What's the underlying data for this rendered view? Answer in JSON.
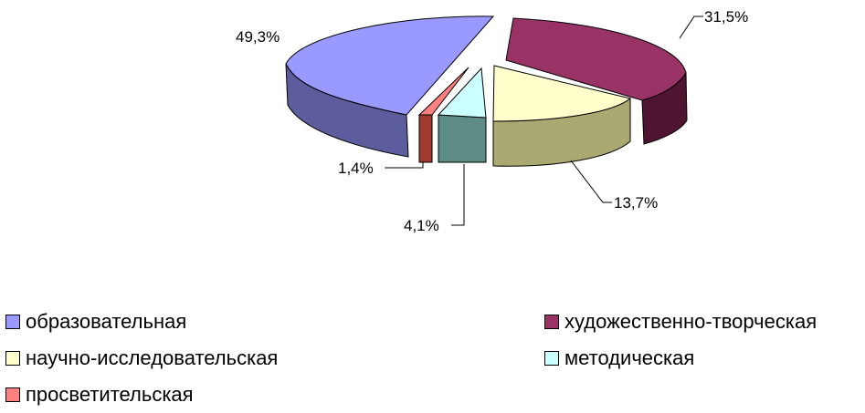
{
  "chart_data": {
    "type": "pie",
    "style": "3d-exploded",
    "categories": [
      "образовательная",
      "художественно-творческая",
      "научно-исследовательская",
      "методическая",
      "просветительская"
    ],
    "values": [
      49.3,
      31.5,
      13.7,
      4.1,
      1.4
    ],
    "data_labels": [
      "49,3%",
      "31,5%",
      "13,7%",
      "4,1%",
      "1,4%"
    ],
    "legend_placement": "bottom",
    "colors": {
      "образовательная": "#9999FF",
      "художественно-творческая": "#993366",
      "научно-исследовательская": "#FFFFCC",
      "методическая": "#CCFFFF",
      "просветительская": "#FF8080"
    },
    "side_colors": {
      "образовательная": "#5D5D9E",
      "художественно-творческая": "#4E1431",
      "научно-исследовательская": "#A9A971",
      "методическая": "#5C8C84",
      "просветительская": "#9E3A2F"
    }
  }
}
